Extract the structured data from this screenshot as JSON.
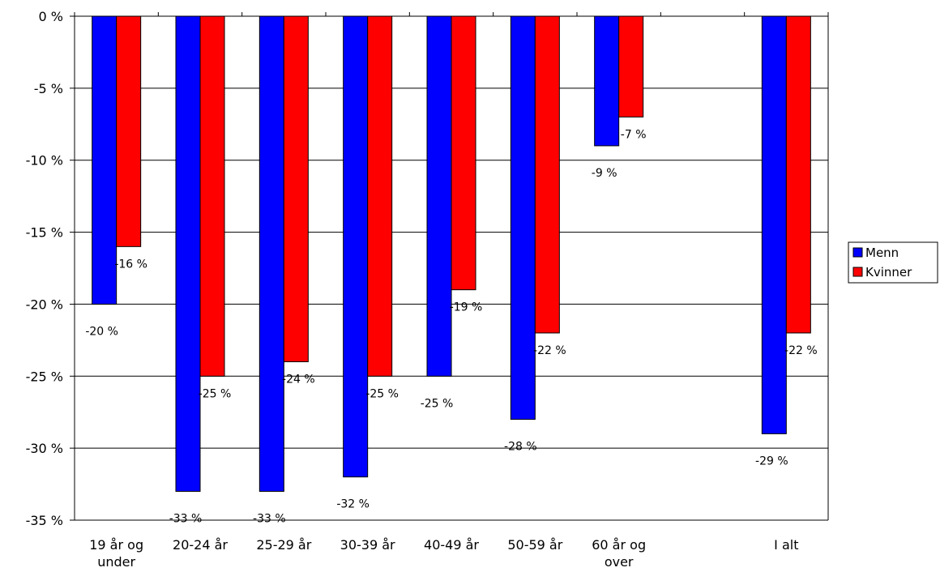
{
  "chart_data": {
    "type": "bar",
    "categories": [
      [
        "19 år og",
        "under"
      ],
      [
        "20-24 år"
      ],
      [
        "25-29 år"
      ],
      [
        "30-39 år"
      ],
      [
        "40-49 år"
      ],
      [
        "50-59 år"
      ],
      [
        "60 år og",
        "over"
      ],
      [
        ""
      ],
      [
        "I alt"
      ]
    ],
    "series": [
      {
        "name": "Menn",
        "color": "#0000FF",
        "values": [
          -20,
          -33,
          -33,
          -32,
          -25,
          -28,
          -9,
          null,
          -29
        ],
        "labels": [
          "-20 %",
          "-33 %",
          "-33 %",
          "-32 %",
          "-25 %",
          "-28 %",
          "-9 %",
          "",
          "-29 %"
        ]
      },
      {
        "name": "Kvinner",
        "color": "#FF0000",
        "values": [
          -16,
          -25,
          -24,
          -25,
          -19,
          -22,
          -7,
          null,
          -22
        ],
        "labels": [
          "-16 %",
          "-25 %",
          "-24 %",
          "-25 %",
          "-19 %",
          "-22 %",
          "-7 %",
          "",
          "-22 %"
        ]
      }
    ],
    "yticks": [
      0,
      -5,
      -10,
      -15,
      -20,
      -25,
      -30,
      -35
    ],
    "ytick_labels": [
      "0 %",
      "-5 %",
      "-10 %",
      "-15 %",
      "-20 %",
      "-25 %",
      "-30 %",
      "-35 %"
    ],
    "ylim": [
      -35,
      0
    ],
    "grid": true,
    "legend_position": "right"
  }
}
